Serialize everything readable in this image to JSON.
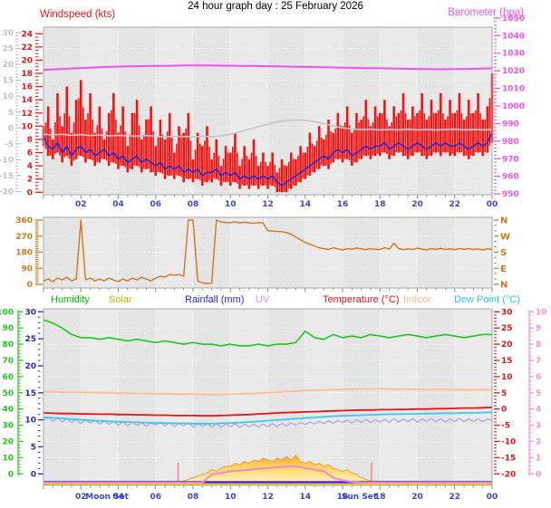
{
  "title": "24 hour graph day : 25 February 2026",
  "top_legend": {
    "left": {
      "label": "Windspeed (kts)",
      "color": "#F01414"
    },
    "right": {
      "label": "Barometer (hpa)",
      "color": "#F050F0"
    }
  },
  "bottom_legend": {
    "items": [
      {
        "label": "Humidity",
        "color": "#00C400"
      },
      {
        "label": "Solar",
        "color": "#C8B400"
      },
      {
        "label": "Rainfall (mm)",
        "color": "#2828C8"
      },
      {
        "label": "UV",
        "color": "#FF8CD2"
      },
      {
        "label": "Temperature (°C)",
        "color": "#E41414"
      },
      {
        "label": "Indoor",
        "color": "#FFB894"
      },
      {
        "label": "Dew Point (°C)",
        "color": "#28C8E6"
      }
    ]
  },
  "x_axis": {
    "hours": [
      2,
      4,
      6,
      8,
      10,
      12,
      14,
      16,
      18,
      20,
      22,
      24
    ],
    "labels": [
      "02",
      "04",
      "06",
      "08",
      "10",
      "12",
      "14",
      "16",
      "18",
      "20",
      "22",
      "00"
    ],
    "label_color": "#3C46C8"
  },
  "annotations": {
    "moon_set": {
      "label": "Moon Set",
      "hour": 3.4
    },
    "sun_set": {
      "label": "Sun Set",
      "hour": 16.9
    },
    "sunrise_marker_hour": 7.2,
    "sunset_marker_hour": 17.55,
    "marker_color": "#F08C6E"
  },
  "chart_data": [
    {
      "panel": "windspeed-barometer",
      "type": "line",
      "axes": {
        "grayscale": {
          "range": [
            -20,
            30
          ],
          "major": 5,
          "minor": 1,
          "color": "#C0C0C0"
        },
        "windspeed": {
          "range": [
            0,
            24
          ],
          "major": 2,
          "minor": 0.5,
          "color": "#F01414"
        },
        "barometer": {
          "range": [
            950,
            1050
          ],
          "major": 10,
          "minor": 2,
          "color": "#F050F0"
        }
      },
      "series": [
        {
          "name": "wind-gust",
          "axis": "windspeed",
          "style": "bars",
          "color": "#F01414",
          "t0": 0,
          "dt": 0.25,
          "values": [
            10,
            13,
            8,
            15,
            10,
            16,
            9,
            14,
            17,
            11,
            15,
            9,
            13,
            8,
            12,
            15,
            9,
            13,
            7,
            12,
            14,
            8,
            11,
            13,
            7,
            11,
            8,
            12,
            6,
            10,
            9,
            12,
            5,
            9,
            7,
            10,
            5,
            8,
            4,
            7,
            6,
            9,
            4,
            7,
            5,
            8,
            4,
            6,
            4,
            6,
            3,
            5,
            4,
            6,
            5,
            7,
            6,
            9,
            7,
            10,
            8,
            11,
            9,
            12,
            10,
            13,
            9,
            12,
            11,
            14,
            10,
            13,
            12,
            14,
            10,
            13,
            12,
            15,
            11,
            13,
            12,
            15,
            11,
            14,
            12,
            15,
            11,
            14,
            12,
            15,
            11,
            14,
            12,
            15,
            11,
            13,
            18
          ]
        },
        {
          "name": "wind-average",
          "axis": "windspeed",
          "style": "line",
          "color": "#2828D2",
          "t0": 0,
          "dt": 0.25,
          "values": [
            8.5,
            7,
            6.5,
            7.5,
            6,
            7,
            5.5,
            6.5,
            7,
            6,
            6.5,
            5.5,
            6,
            6.5,
            5.5,
            6,
            5,
            5.5,
            4.5,
            5,
            5.5,
            4.5,
            5,
            4.5,
            4,
            4.5,
            3.5,
            4,
            3.5,
            4,
            3,
            3.5,
            3,
            3.5,
            2.5,
            3,
            3,
            3.5,
            2.5,
            3,
            2.5,
            3,
            2,
            2.5,
            2,
            2.5,
            2,
            2.5,
            2,
            2.5,
            1.5,
            1,
            1.5,
            2,
            2.5,
            3,
            3.5,
            4,
            4.5,
            5,
            5.5,
            5,
            6,
            6.5,
            6,
            6.5,
            5.5,
            6,
            6.5,
            7,
            6.5,
            7,
            7,
            7.5,
            6.5,
            7,
            7.5,
            7,
            6.5,
            7,
            7.5,
            7,
            6.5,
            7,
            7.5,
            7,
            7.5,
            7,
            7,
            7.5,
            7,
            6.5,
            7,
            7.5,
            7,
            7.5,
            9
          ]
        },
        {
          "name": "unlabeled-gray-line",
          "axis": "grayscale",
          "style": "line",
          "color": "#C6C6C6",
          "t0": 0,
          "dt": 0.5,
          "values": [
            -2,
            -2.2,
            -2,
            -2.3,
            -2.1,
            -2.4,
            -2.2,
            -2.5,
            -2.3,
            -2.5,
            -2.6,
            -2.4,
            -2.6,
            -2.8,
            -2.6,
            -2.7,
            -2.8,
            -2.6,
            -2.8,
            -2.5,
            -2,
            -1.2,
            -0.4,
            0.4,
            1.2,
            1.9,
            2.3,
            2.5,
            2.4,
            2,
            1.4,
            0.6,
            0,
            -0.3,
            -0.5,
            -0.4,
            -0.6,
            -0.5,
            -0.6,
            -0.4,
            -0.6,
            -0.5,
            -0.6,
            -0.5,
            -0.4,
            -0.6,
            -0.5,
            -0.6,
            -0.5
          ]
        },
        {
          "name": "barometer",
          "axis": "barometer",
          "style": "line",
          "color": "#F050F0",
          "t0": 0,
          "dt": 0.5,
          "values": [
            1020.5,
            1020.8,
            1021,
            1021.3,
            1021.5,
            1021.8,
            1022,
            1022.2,
            1022.4,
            1022.5,
            1022.6,
            1022.7,
            1022.8,
            1022.8,
            1022.9,
            1023,
            1023,
            1023,
            1023,
            1022.9,
            1022.9,
            1022.8,
            1022.8,
            1022.7,
            1022.6,
            1022.5,
            1022.4,
            1022.3,
            1022.2,
            1022.1,
            1022,
            1021.9,
            1021.8,
            1021.7,
            1021.6,
            1021.5,
            1021.4,
            1021.3,
            1021.2,
            1021.1,
            1021,
            1021,
            1020.9,
            1020.9,
            1021,
            1021,
            1021.1,
            1021.2,
            1021.4
          ]
        }
      ]
    },
    {
      "panel": "wind-direction",
      "type": "line",
      "axes": {
        "direction": {
          "range": [
            0,
            360
          ],
          "major": 90,
          "minor": 10,
          "color": "#D2761E",
          "right_labels": [
            "N",
            "W",
            "S",
            "E",
            "N"
          ]
        }
      },
      "series": [
        {
          "name": "wind-direction",
          "axis": "direction",
          "style": "line",
          "color": "#D2761E",
          "t0": 0,
          "dt": 0.25,
          "values": [
            20,
            30,
            15,
            35,
            25,
            40,
            20,
            30,
            360,
            25,
            35,
            20,
            30,
            20,
            35,
            25,
            15,
            30,
            20,
            35,
            25,
            40,
            30,
            20,
            35,
            45,
            40,
            55,
            50,
            55,
            45,
            360,
            360,
            20,
            8,
            5,
            6,
            360,
            350,
            346,
            345,
            350,
            344,
            348,
            345,
            342,
            346,
            344,
            300,
            298,
            296,
            295,
            290,
            280,
            265,
            250,
            235,
            225,
            215,
            205,
            200,
            195,
            205,
            198,
            192,
            200,
            196,
            204,
            198,
            194,
            200,
            196,
            195,
            205,
            198,
            230,
            200,
            194,
            199,
            195,
            203,
            197,
            193,
            200,
            196,
            202,
            195,
            199,
            194,
            201,
            196,
            200,
            195,
            198,
            193,
            199,
            196
          ]
        }
      ]
    },
    {
      "panel": "humidity-solar-rainfall-uv-temperature",
      "type": "line",
      "axes": {
        "humidity": {
          "range": [
            0,
            100
          ],
          "major": 10,
          "minor": 2,
          "color": "#1EC81E"
        },
        "rainfall": {
          "range": [
            0,
            30
          ],
          "major": 5,
          "minor": 1,
          "color": "#2828C8"
        },
        "temperature": {
          "range": [
            -20,
            30
          ],
          "major": 5,
          "minor": 1,
          "color": "#E41414"
        },
        "uv": {
          "range": [
            0,
            10
          ],
          "major": 1,
          "minor": 0.25,
          "color": "#FF8CD2"
        }
      },
      "series": [
        {
          "name": "humidity",
          "axis": "humidity",
          "style": "line",
          "color": "#1EC81E",
          "t0": 0,
          "dt": 0.5,
          "values": [
            95,
            93,
            90,
            86,
            84,
            84,
            83,
            84,
            83,
            82,
            83,
            82,
            81,
            82,
            81,
            80,
            81,
            80,
            80,
            79,
            80,
            79,
            79,
            80,
            79,
            80,
            80,
            81,
            88,
            84,
            83,
            86,
            84,
            85,
            84,
            86,
            85,
            84,
            85,
            86,
            85,
            84,
            85,
            86,
            85,
            84,
            85,
            86,
            86
          ]
        },
        {
          "name": "indoor",
          "axis": "temperature",
          "style": "line",
          "color": "#FFBE9B",
          "t0": 0,
          "dt": 0.5,
          "values": [
            5.3,
            5.3,
            5.2,
            5.2,
            5.1,
            5.1,
            5,
            5,
            4.9,
            4.9,
            4.8,
            4.8,
            4.7,
            4.7,
            4.6,
            4.6,
            4.6,
            4.5,
            4.5,
            4.5,
            4.6,
            4.7,
            4.8,
            4.9,
            5,
            5.2,
            5.4,
            5.5,
            5.7,
            5.8,
            5.9,
            6,
            6.1,
            6.1,
            6.2,
            6.2,
            6.2,
            6.2,
            6.1,
            6.1,
            6.1,
            6,
            6,
            6,
            6,
            6,
            6,
            6,
            5.9
          ]
        },
        {
          "name": "temperature",
          "axis": "temperature",
          "style": "line",
          "color": "#E41414",
          "t0": 0,
          "dt": 0.5,
          "values": [
            -1.2,
            -1.3,
            -1.4,
            -1.4,
            -1.5,
            -1.5,
            -1.6,
            -1.6,
            -1.7,
            -1.7,
            -1.8,
            -1.8,
            -1.9,
            -1.9,
            -2,
            -2,
            -2,
            -2.1,
            -2.1,
            -2,
            -1.9,
            -1.8,
            -1.7,
            -1.5,
            -1.4,
            -1.2,
            -1.1,
            -1,
            -0.9,
            -0.8,
            -0.7,
            -0.6,
            -0.5,
            -0.4,
            -0.3,
            -0.3,
            -0.2,
            -0.2,
            -0.1,
            -0.1,
            0,
            0,
            0.1,
            0.1,
            0.2,
            0.3,
            0.3,
            0.4,
            0.5
          ]
        },
        {
          "name": "unlabeled-lavender-line",
          "axis": "temperature",
          "style": "line",
          "color": "#A2A2E8",
          "t0": 0,
          "dt": 0.25,
          "values": [
            -3.5,
            -2.5,
            -3.8,
            -2.8,
            -4,
            -3,
            -4.2,
            -3.2,
            -4.5,
            -3.3,
            -4.3,
            -3.5,
            -4.6,
            -3.6,
            -4.8,
            -3.8,
            -5,
            -4,
            -5.2,
            -4,
            -5,
            -4.2,
            -5.3,
            -4.3,
            -5,
            -4,
            -5.2,
            -4.2,
            -5.4,
            -4.4,
            -5.2,
            -4.2,
            -5.5,
            -4.5,
            -5.3,
            -4.5,
            -5.5,
            -4.5,
            -5.6,
            -4.6,
            -5.5,
            -4.5,
            -5.7,
            -4.7,
            -5.5,
            -4.6,
            -5.6,
            -4.6,
            -5.5,
            -4.5,
            -5.4,
            -4.4,
            -5.2,
            -4.3,
            -5,
            -4.2,
            -4.8,
            -4,
            -4.6,
            -3.8,
            -4.5,
            -3.6,
            -4.4,
            -3.5,
            -4.2,
            -3.4,
            -4.3,
            -3.3,
            -4.1,
            -3.2,
            -4.2,
            -3.3,
            -4,
            -3.2,
            -4.1,
            -3,
            -4,
            -3.1,
            -3.9,
            -3,
            -4,
            -3.1,
            -3.8,
            -3,
            -3.9,
            -3,
            -4,
            -3.1,
            -3.8,
            -2.9,
            -3.9,
            -3,
            -3.8,
            -3,
            -3.9,
            -3.1,
            -3.5
          ]
        },
        {
          "name": "dew-point",
          "axis": "temperature",
          "style": "line",
          "color": "#3CC8F0",
          "t0": 0,
          "dt": 0.5,
          "values": [
            -2.5,
            -2.7,
            -2.9,
            -3.1,
            -3.3,
            -3.5,
            -3.6,
            -3.8,
            -3.9,
            -4,
            -4.1,
            -4.2,
            -4.3,
            -4.3,
            -4.4,
            -4.4,
            -4.5,
            -4.5,
            -4.5,
            -4.4,
            -4.3,
            -4.2,
            -4,
            -3.8,
            -3.6,
            -3.4,
            -3.2,
            -3,
            -2.8,
            -2.6,
            -2.4,
            -2.2,
            -2.1,
            -2,
            -1.9,
            -1.8,
            -1.7,
            -1.6,
            -1.6,
            -1.5,
            -1.5,
            -1.4,
            -1.4,
            -1.3,
            -1.3,
            -1.2,
            -1.2,
            -1.1,
            -1
          ]
        },
        {
          "name": "solar",
          "axis": "solar",
          "style": "area",
          "color": "#ED9C28",
          "t0": 0,
          "dt": 0.25,
          "values": [
            0,
            0,
            0,
            0,
            0,
            0,
            0,
            0,
            0,
            0,
            0,
            0,
            0,
            0,
            0,
            0,
            0,
            0,
            0,
            0,
            0,
            0,
            0,
            0,
            0,
            0,
            0,
            0,
            0,
            0.5,
            1,
            2,
            3,
            4,
            5,
            6,
            8,
            7,
            9,
            10,
            10,
            12,
            11,
            13,
            12,
            14,
            13,
            15,
            14,
            13,
            15,
            14,
            16,
            14,
            17,
            13,
            12,
            13,
            11,
            12,
            10,
            11,
            9,
            8,
            7,
            8,
            6,
            5,
            3,
            2,
            1,
            0.5,
            0,
            0,
            0,
            0,
            0,
            0,
            0,
            0,
            0,
            0,
            0,
            0,
            0,
            0,
            0,
            0,
            0,
            0,
            0,
            0,
            0,
            0,
            0,
            0,
            0
          ]
        },
        {
          "name": "uv",
          "axis": "uv_draw",
          "style": "line",
          "color": "#F287C7",
          "t0": 0,
          "dt": 0.5,
          "values": [
            0,
            0,
            0,
            0,
            0,
            0,
            0,
            0,
            0,
            0,
            0,
            0,
            0,
            0,
            0,
            0,
            0,
            0,
            0.5,
            0.6,
            0.7,
            0.75,
            0.8,
            0.85,
            0.9,
            0.95,
            1,
            1,
            0.9,
            0.8,
            0.7,
            0.3,
            0.15,
            0.05,
            0,
            0,
            0,
            0,
            0,
            0,
            0,
            0,
            0,
            0,
            0,
            0,
            0,
            0,
            0
          ]
        },
        {
          "name": "rainfall",
          "axis": "rainfall",
          "style": "constant-line",
          "color": "#5523C8",
          "value": 0
        }
      ]
    }
  ]
}
